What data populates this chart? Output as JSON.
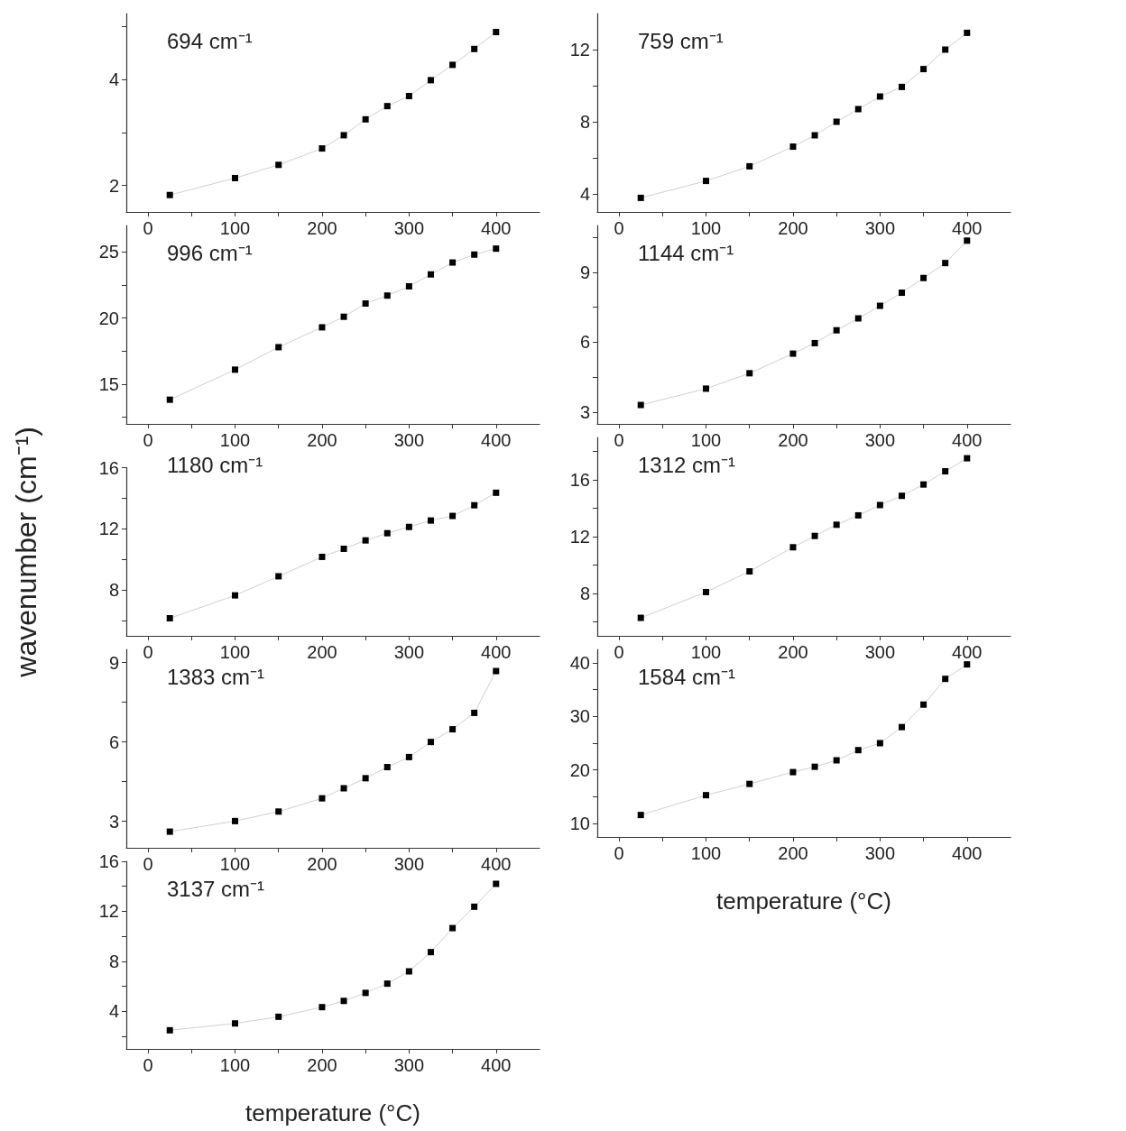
{
  "chart_data": [
    {
      "type": "line",
      "annotations": [
        "694 cm⁻¹"
      ],
      "x": [
        25,
        100,
        150,
        200,
        225,
        250,
        275,
        300,
        325,
        350,
        375,
        400
      ],
      "series": [
        {
          "color": "#000000",
          "values": [
            1.82,
            2.14,
            2.39,
            2.7,
            2.95,
            3.25,
            3.5,
            3.69,
            3.99,
            4.28,
            4.58,
            4.9
          ]
        }
      ],
      "xlim": [
        -25,
        450
      ],
      "xticks": [
        0,
        {
          "value": 50,
          "label": null
        },
        100,
        {
          "value": 150,
          "label": null
        },
        200,
        {
          "value": 250,
          "label": null
        },
        300,
        {
          "value": 350,
          "label": null
        },
        400
      ],
      "ylim": [
        1.5,
        5.25
      ],
      "yticks": [
        2,
        {
          "value": 3,
          "label": null
        },
        4,
        {
          "value": 5,
          "label": null
        }
      ],
      "marker": "square",
      "grid": false
    },
    {
      "type": "line",
      "annotations": [
        "759 cm⁻¹"
      ],
      "x": [
        25,
        100,
        150,
        200,
        225,
        250,
        275,
        300,
        325,
        350,
        375,
        400
      ],
      "series": [
        {
          "color": "#000000",
          "values": [
            3.78,
            4.72,
            5.53,
            6.62,
            7.25,
            8.0,
            8.7,
            9.4,
            9.93,
            10.92,
            12.0,
            12.93
          ]
        }
      ],
      "xlim": [
        -25,
        450
      ],
      "xticks": [
        0,
        {
          "value": 50,
          "label": null
        },
        100,
        {
          "value": 150,
          "label": null
        },
        200,
        {
          "value": 250,
          "label": null
        },
        300,
        {
          "value": 350,
          "label": null
        },
        400
      ],
      "ylim": [
        3,
        14
      ],
      "yticks": [
        4,
        {
          "value": 6,
          "label": null
        },
        8,
        {
          "value": 10,
          "label": null
        },
        12
      ],
      "marker": "square",
      "grid": false
    },
    {
      "type": "line",
      "annotations": [
        "996 cm⁻¹"
      ],
      "x": [
        25,
        100,
        150,
        200,
        225,
        250,
        275,
        300,
        325,
        350,
        375,
        400
      ],
      "series": [
        {
          "color": "#000000",
          "values": [
            13.83,
            16.1,
            17.8,
            19.3,
            20.1,
            21.1,
            21.7,
            22.4,
            23.3,
            24.2,
            24.8,
            25.25
          ]
        }
      ],
      "xlim": [
        -25,
        450
      ],
      "xticks": [
        0,
        {
          "value": 50,
          "label": null
        },
        100,
        {
          "value": 150,
          "label": null
        },
        200,
        {
          "value": 250,
          "label": null
        },
        300,
        {
          "value": 350,
          "label": null
        },
        400
      ],
      "ylim": [
        12,
        27
      ],
      "yticks": [
        {
          "value": 12.5,
          "label": null
        },
        15,
        {
          "value": 17.5,
          "label": null
        },
        20,
        {
          "value": 22.5,
          "label": null
        },
        25
      ],
      "marker": "square",
      "grid": false
    },
    {
      "type": "line",
      "annotations": [
        "1144 cm⁻¹"
      ],
      "x": [
        25,
        100,
        150,
        200,
        225,
        250,
        275,
        300,
        325,
        350,
        375,
        400
      ],
      "series": [
        {
          "color": "#000000",
          "values": [
            3.31,
            4.01,
            4.67,
            5.51,
            5.96,
            6.51,
            7.02,
            7.56,
            8.12,
            8.75,
            9.39,
            10.35
          ]
        }
      ],
      "xlim": [
        -25,
        450
      ],
      "xticks": [
        0,
        {
          "value": 50,
          "label": null
        },
        100,
        {
          "value": 150,
          "label": null
        },
        200,
        {
          "value": 250,
          "label": null
        },
        300,
        {
          "value": 350,
          "label": null
        },
        400
      ],
      "ylim": [
        2.5,
        11
      ],
      "yticks": [
        3,
        {
          "value": 4.5,
          "label": null
        },
        6,
        {
          "value": 7.5,
          "label": null
        },
        9,
        {
          "value": 10.5,
          "label": null
        }
      ],
      "marker": "square",
      "grid": false
    },
    {
      "type": "line",
      "ylabel": "wavenumber (cm⁻¹)",
      "annotations": [
        "1180 cm⁻¹"
      ],
      "x": [
        25,
        100,
        150,
        200,
        225,
        250,
        275,
        300,
        325,
        350,
        375,
        400
      ],
      "series": [
        {
          "color": "#000000",
          "values": [
            6.15,
            7.65,
            8.9,
            10.17,
            10.7,
            11.25,
            11.72,
            12.13,
            12.55,
            12.85,
            13.55,
            14.37
          ]
        }
      ],
      "xlim": [
        -25,
        450
      ],
      "xticks": [
        0,
        {
          "value": 50,
          "label": null
        },
        100,
        {
          "value": 150,
          "label": null
        },
        200,
        {
          "value": 250,
          "label": null
        },
        300,
        {
          "value": 350,
          "label": null
        },
        400
      ],
      "ylim": [
        5,
        16
      ],
      "yticks": [
        {
          "value": 6,
          "label": null
        },
        8,
        {
          "value": 10,
          "label": null
        },
        12,
        {
          "value": 14,
          "label": null
        },
        16
      ],
      "marker": "square",
      "grid": false
    },
    {
      "type": "line",
      "annotations": [
        "1312 cm⁻¹"
      ],
      "x": [
        25,
        100,
        150,
        200,
        225,
        250,
        275,
        300,
        325,
        350,
        375,
        400
      ],
      "series": [
        {
          "color": "#000000",
          "values": [
            6.27,
            8.09,
            9.55,
            11.25,
            12.05,
            12.84,
            13.5,
            14.23,
            14.88,
            15.68,
            16.61,
            17.53
          ]
        }
      ],
      "xlim": [
        -25,
        450
      ],
      "xticks": [
        0,
        {
          "value": 50,
          "label": null
        },
        100,
        {
          "value": 150,
          "label": null
        },
        200,
        {
          "value": 250,
          "label": null
        },
        300,
        {
          "value": 350,
          "label": null
        },
        400
      ],
      "ylim": [
        5,
        19
      ],
      "yticks": [
        {
          "value": 6,
          "label": null
        },
        8,
        {
          "value": 10,
          "label": null
        },
        12,
        {
          "value": 14,
          "label": null
        },
        16,
        {
          "value": 18,
          "label": null
        }
      ],
      "marker": "square",
      "grid": false
    },
    {
      "type": "line",
      "annotations": [
        "1383 cm⁻¹"
      ],
      "x": [
        25,
        100,
        150,
        200,
        225,
        250,
        275,
        300,
        325,
        350,
        375,
        400
      ],
      "series": [
        {
          "color": "#000000",
          "values": [
            2.61,
            3.01,
            3.37,
            3.87,
            4.25,
            4.63,
            5.05,
            5.43,
            6.0,
            6.48,
            7.1,
            8.68
          ]
        }
      ],
      "xlim": [
        -25,
        450
      ],
      "xticks": [
        0,
        {
          "value": 50,
          "label": null
        },
        100,
        {
          "value": 150,
          "label": null
        },
        200,
        {
          "value": 250,
          "label": null
        },
        300,
        {
          "value": 350,
          "label": null
        },
        400
      ],
      "ylim": [
        2,
        9.5
      ],
      "yticks": [
        3,
        {
          "value": 4.5,
          "label": null
        },
        6,
        {
          "value": 7.5,
          "label": null
        },
        9
      ],
      "marker": "square",
      "grid": false
    },
    {
      "type": "line",
      "xlabel": "temperature (°C)",
      "annotations": [
        "1584 cm⁻¹"
      ],
      "x": [
        25,
        100,
        150,
        200,
        225,
        250,
        275,
        300,
        325,
        350,
        375,
        400
      ],
      "series": [
        {
          "color": "#000000",
          "values": [
            11.6,
            15.3,
            17.4,
            19.6,
            20.6,
            21.8,
            23.7,
            25.0,
            28.0,
            32.2,
            37.0,
            39.7
          ]
        }
      ],
      "xlim": [
        -25,
        450
      ],
      "xticks": [
        0,
        {
          "value": 50,
          "label": null
        },
        100,
        {
          "value": 150,
          "label": null
        },
        200,
        {
          "value": 250,
          "label": null
        },
        300,
        {
          "value": 350,
          "label": null
        },
        400
      ],
      "ylim": [
        7.5,
        42.5
      ],
      "yticks": [
        10,
        {
          "value": 15,
          "label": null
        },
        20,
        {
          "value": 25,
          "label": null
        },
        30,
        {
          "value": 35,
          "label": null
        },
        40
      ],
      "marker": "square",
      "grid": false
    },
    {
      "type": "line",
      "xlabel": "temperature (°C)",
      "annotations": [
        "3137 cm⁻¹"
      ],
      "x": [
        25,
        100,
        150,
        200,
        225,
        250,
        275,
        300,
        325,
        350,
        375,
        400
      ],
      "series": [
        {
          "color": "#000000",
          "values": [
            2.49,
            3.04,
            3.57,
            4.34,
            4.84,
            5.48,
            6.22,
            7.2,
            8.74,
            10.66,
            12.37,
            14.2
          ]
        }
      ],
      "xlim": [
        -25,
        450
      ],
      "xticks": [
        0,
        {
          "value": 50,
          "label": null
        },
        100,
        {
          "value": 150,
          "label": null
        },
        200,
        {
          "value": 250,
          "label": null
        },
        300,
        {
          "value": 350,
          "label": null
        },
        400
      ],
      "ylim": [
        1,
        16
      ],
      "yticks": [
        {
          "value": 2,
          "label": null
        },
        4,
        {
          "value": 6,
          "label": null
        },
        8,
        {
          "value": 10,
          "label": null
        },
        12,
        {
          "value": 14,
          "label": null
        },
        16
      ],
      "marker": "square",
      "grid": false
    }
  ]
}
